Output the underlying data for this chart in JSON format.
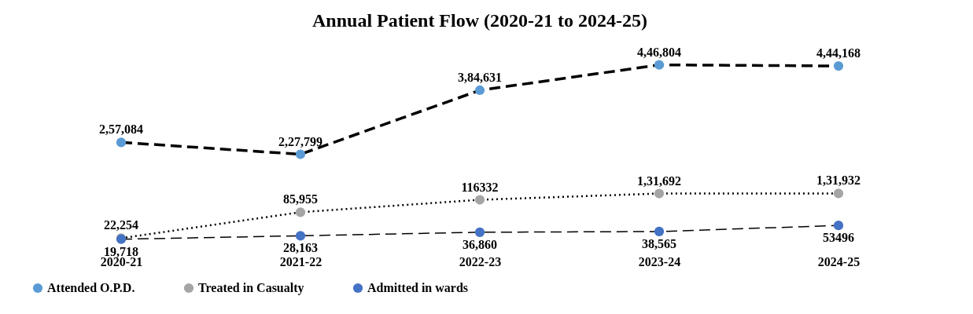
{
  "chart_data": {
    "type": "line",
    "title": "Annual Patient Flow (2020-21 to 2024-25)",
    "categories": [
      "2020-21",
      "2021-22",
      "2022-23",
      "2023-24",
      "2024-25"
    ],
    "marker": "circle",
    "legend": "bottom",
    "series": [
      {
        "name": "Attended O.P.D.",
        "color": "#5b9bd5",
        "line_style": "dashed",
        "values": [
          257084,
          227799,
          384631,
          446804,
          444168
        ],
        "value_labels": [
          "2,57,084",
          "2,27,799",
          "3,84,631",
          "4,46,804",
          "4,44,168"
        ]
      },
      {
        "name": "Treated in Casualty",
        "color": "#a5a5a5",
        "line_style": "dotted",
        "values": [
          22254,
          85955,
          116332,
          131692,
          131932
        ],
        "value_labels": [
          "22,254",
          "85,955",
          "116332",
          "1,31,692",
          "1,31,932"
        ]
      },
      {
        "name": "Admitted in wards",
        "color": "#4472c4",
        "line_style": "dashed",
        "values": [
          19718,
          28163,
          36860,
          38565,
          53496
        ],
        "value_labels": [
          "19,718",
          "28,163",
          "36,860",
          "38,565",
          "53496"
        ]
      }
    ]
  }
}
